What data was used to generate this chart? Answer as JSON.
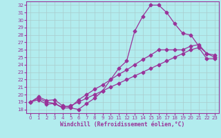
{
  "background_color": "#b2ecee",
  "grid_color": "#aacccc",
  "line_color": "#993399",
  "marker": "D",
  "markersize": 2.5,
  "linewidth": 0.9,
  "xlabel": "Windchill (Refroidissement éolien,°C)",
  "xlabel_fontsize": 5.8,
  "tick_fontsize": 5.0,
  "xlim": [
    -0.5,
    23.5
  ],
  "ylim": [
    17.5,
    32.5
  ],
  "yticks": [
    18,
    19,
    20,
    21,
    22,
    23,
    24,
    25,
    26,
    27,
    28,
    29,
    30,
    31,
    32
  ],
  "xticks": [
    0,
    1,
    2,
    3,
    4,
    5,
    6,
    7,
    8,
    9,
    10,
    11,
    12,
    13,
    14,
    15,
    16,
    17,
    18,
    19,
    20,
    21,
    22,
    23
  ],
  "series1_x": [
    0,
    1,
    2,
    3,
    4,
    5,
    6,
    7,
    8,
    9,
    10,
    11,
    12,
    13,
    14,
    15,
    16,
    17,
    18,
    19,
    20,
    21,
    22,
    23
  ],
  "series1_y": [
    19.0,
    19.5,
    19.0,
    18.8,
    18.2,
    18.2,
    18.0,
    18.8,
    19.5,
    20.5,
    22.0,
    23.5,
    24.5,
    28.5,
    30.5,
    32.0,
    32.0,
    31.0,
    29.5,
    28.2,
    28.0,
    26.5,
    25.5,
    25.0
  ],
  "series2_x": [
    0,
    1,
    2,
    3,
    4,
    5,
    6,
    7,
    8,
    9,
    10,
    11,
    12,
    13,
    14,
    15,
    16,
    17,
    18,
    19,
    20,
    21,
    22,
    23
  ],
  "series2_y": [
    19.0,
    19.7,
    19.2,
    19.3,
    18.5,
    18.3,
    19.3,
    20.0,
    20.7,
    21.3,
    22.0,
    22.7,
    23.3,
    24.0,
    24.7,
    25.3,
    26.0,
    26.0,
    26.0,
    26.0,
    26.5,
    26.7,
    25.5,
    25.3
  ],
  "series3_x": [
    0,
    1,
    2,
    3,
    4,
    5,
    6,
    7,
    8,
    9,
    10,
    11,
    12,
    13,
    14,
    15,
    16,
    17,
    18,
    19,
    20,
    21,
    22,
    23
  ],
  "series3_y": [
    19.0,
    19.3,
    18.7,
    18.8,
    18.3,
    18.5,
    19.0,
    19.5,
    20.0,
    20.5,
    21.0,
    21.5,
    22.0,
    22.5,
    23.0,
    23.5,
    24.0,
    24.5,
    25.0,
    25.5,
    26.0,
    26.3,
    24.8,
    24.8
  ]
}
